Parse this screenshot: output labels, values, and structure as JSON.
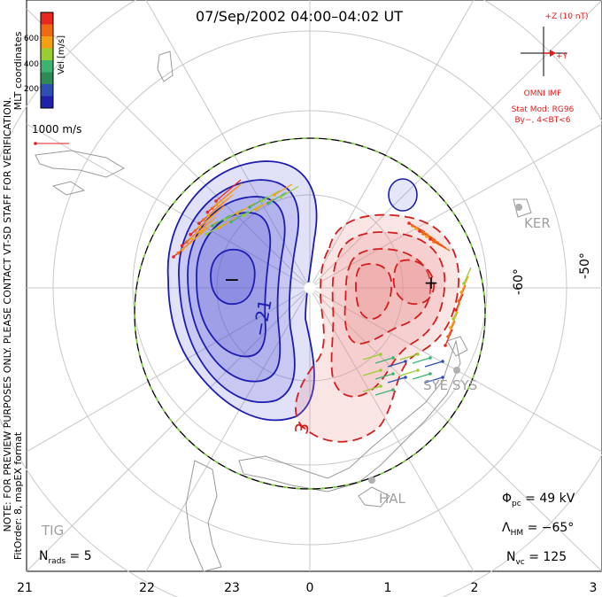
{
  "title": "07/Sep/2002 04:00–04:02 UT",
  "colorbar": {
    "label": "Vel [m/s]",
    "ticks": [
      "600",
      "400",
      "200"
    ],
    "colors": [
      "#e8281e",
      "#f06a14",
      "#f5a012",
      "#9acd32",
      "#3cb371",
      "#2e8b57",
      "#2f4fb5",
      "#2020a8"
    ]
  },
  "side_labels": {
    "mlt": "MLT coordinates",
    "note": "NOTE: FOR PREVIEW PURPOSES ONLY. PLEASE CONTACT VT-SD STAFF FOR VERIFICATION.",
    "fit": "FitOrder: 8, mapEX format"
  },
  "scale_vector": {
    "label": "1000 m/s"
  },
  "imf": {
    "z_label": "+Z (10 nT)",
    "y_label": "+Y",
    "source": "OMNI IMF",
    "model": "Stat Mod: RG96",
    "condition": "By−, 4<BT<6"
  },
  "stations": [
    "KER",
    "SYE SYS",
    "HAL",
    "TIG"
  ],
  "lat_labels": [
    "-60°",
    "-50°"
  ],
  "contour_labels": {
    "neg": "−21",
    "pos": "3"
  },
  "stats": {
    "phi_sym": "Φ",
    "phi_sub": "pc",
    "phi_val": " = 49 kV",
    "lam_sym": "Λ",
    "lam_sub": "HM",
    "lam_val": " = −65°",
    "nvc_sym": "N",
    "nvc_sub": "vc",
    "nvc_val": " = 125",
    "nrads_sym": "N",
    "nrads_sub": "rads",
    "nrads_val": " = 5"
  },
  "mlt_axis": [
    "21",
    "22",
    "23",
    "0",
    "1",
    "2",
    "3"
  ],
  "marks": {
    "min": "−",
    "max": "+"
  },
  "colors": {
    "neg_fill": "#5a5ad8",
    "neg_line": "#1c1cb0",
    "pos_fill": "#e88a8a",
    "pos_line": "#d21e1e",
    "imf": "#e01b1b",
    "grid": "#c8c8c8",
    "land": "#9a9a9a"
  }
}
